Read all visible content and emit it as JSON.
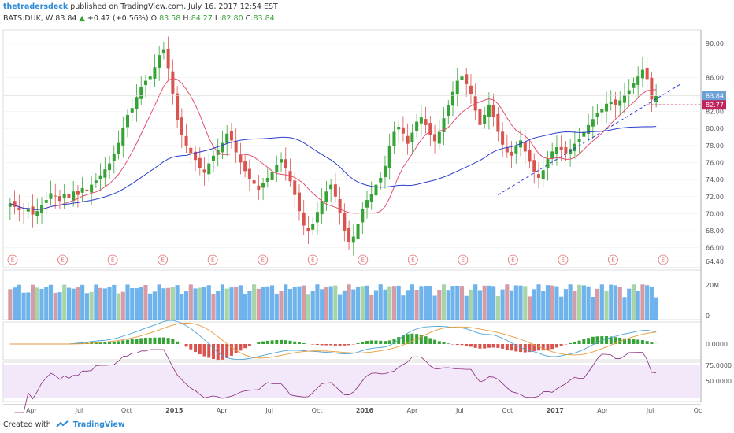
{
  "header": {
    "author": "thetradersdeck",
    "published": "published on TradingView.com, July 16, 2017 12:54 EST",
    "symbol": "BATS:DUK, W",
    "last": "83.84",
    "change": "+0.47 (+0.56%)",
    "o_label": "O:",
    "o_val": "83.58",
    "h_label": "H:",
    "h_val": "84.27",
    "l_label": "L:",
    "l_val": "82.80",
    "c_label": "C:",
    "c_val": "83.84"
  },
  "footer": {
    "created": "Created with",
    "brand": "TradingView"
  },
  "colors": {
    "up": "#36a336",
    "down": "#d9534f",
    "ma_fast": "#e0506e",
    "ma_slow": "#2b3fcf",
    "trend": "#2b3fcf",
    "volume": "#3d9ae6",
    "rsi_band": "#ead9f5",
    "brand": "#2e8bd5"
  },
  "chart_data": {
    "type": "candlestick",
    "price_axis": {
      "ticks": [
        "90.00",
        "86.00",
        "84.00",
        "82.00",
        "80.00",
        "78.00",
        "76.00",
        "74.00",
        "72.00",
        "70.00",
        "68.00",
        "66.00",
        "64.40"
      ],
      "ylim": [
        64.4,
        91.2
      ]
    },
    "time_axis": {
      "labels": [
        "Apr",
        "Jul",
        "Oct",
        "2015",
        "Apr",
        "Jul",
        "Oct",
        "2016",
        "Apr",
        "Jul",
        "Oct",
        "2017",
        "Apr",
        "Jul",
        "Oc"
      ]
    },
    "price_tags": {
      "last": "83.84",
      "level": "82.77"
    },
    "earnings_marker": "E",
    "earnings_count": 14,
    "weekly_closes": [
      71.2,
      70.8,
      70.4,
      70.1,
      70.6,
      69.9,
      70.3,
      71.0,
      71.6,
      72.4,
      72.1,
      71.5,
      72.3,
      71.8,
      72.6,
      72.2,
      73.0,
      72.7,
      73.4,
      73.9,
      74.5,
      75.2,
      75.9,
      77.0,
      78.3,
      80.1,
      81.6,
      82.4,
      83.7,
      84.9,
      85.6,
      86.1,
      87.2,
      88.6,
      89.3,
      87.0,
      84.1,
      81.0,
      79.2,
      78.0,
      77.1,
      76.3,
      75.4,
      74.8,
      75.9,
      76.8,
      77.5,
      78.3,
      79.4,
      78.6,
      77.2,
      76.0,
      75.0,
      74.1,
      73.5,
      72.8,
      73.6,
      74.2,
      74.9,
      75.7,
      76.4,
      75.3,
      73.8,
      72.2,
      70.3,
      68.6,
      67.9,
      68.8,
      70.2,
      71.5,
      72.6,
      73.4,
      72.0,
      70.1,
      68.0,
      66.7,
      67.3,
      68.8,
      70.5,
      71.6,
      72.3,
      73.4,
      74.2,
      75.6,
      77.9,
      79.6,
      80.2,
      79.4,
      78.2,
      79.5,
      80.8,
      81.3,
      80.4,
      79.2,
      78.5,
      79.6,
      81.2,
      82.7,
      84.3,
      85.6,
      86.1,
      85.2,
      84.0,
      82.1,
      80.4,
      81.6,
      82.8,
      81.4,
      79.6,
      78.1,
      77.2,
      76.8,
      77.9,
      78.6,
      77.3,
      76.1,
      74.9,
      74.2,
      75.1,
      76.4,
      77.3,
      77.8,
      77.5,
      77.1,
      77.6,
      78.2,
      78.8,
      79.6,
      80.4,
      81.1,
      81.8,
      82.3,
      82.9,
      83.1,
      82.7,
      83.3,
      83.9,
      84.5,
      85.3,
      86.1,
      86.9,
      85.8,
      83.4,
      83.84
    ],
    "indicators": [
      {
        "name": "volume",
        "axis": [
          "20M",
          "0"
        ]
      },
      {
        "name": "macd",
        "axis": [
          "0.0000"
        ]
      },
      {
        "name": "rsi",
        "axis": [
          "75.0000",
          "50.0000"
        ]
      }
    ]
  }
}
